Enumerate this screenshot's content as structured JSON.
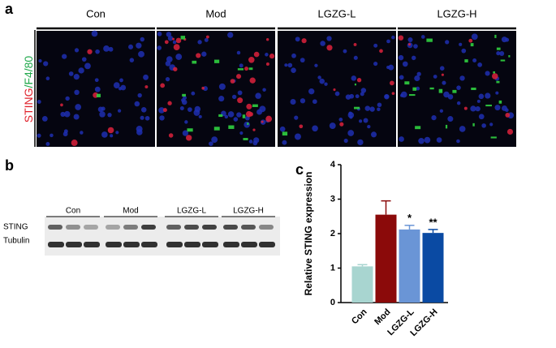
{
  "panel_a": {
    "label": "a",
    "columns": [
      "Con",
      "Mod",
      "LGZG-L",
      "LGZG-H"
    ],
    "stain_red": "STING",
    "stain_green": "/F4/80"
  },
  "panel_b": {
    "label": "b",
    "groups": [
      "Con",
      "Mod",
      "LGZG-L",
      "LGZG-H"
    ],
    "rows": [
      "STING",
      "Tubulin"
    ]
  },
  "chart_data": {
    "type": "bar",
    "label": "c",
    "ylabel": "Relative STING expression",
    "categories": [
      "Con",
      "Mod",
      "LGZG-L",
      "LGZG-H"
    ],
    "values": [
      1.05,
      2.55,
      2.12,
      2.02
    ],
    "errors": [
      0.05,
      0.4,
      0.12,
      0.1
    ],
    "colors": [
      "#a8d5d0",
      "#8b0a0a",
      "#6a95d6",
      "#0a4aa3"
    ],
    "annotations": [
      null,
      null,
      "*",
      "**"
    ],
    "ylim": [
      0,
      4
    ],
    "yticks": [
      0,
      1,
      2,
      3,
      4
    ]
  }
}
